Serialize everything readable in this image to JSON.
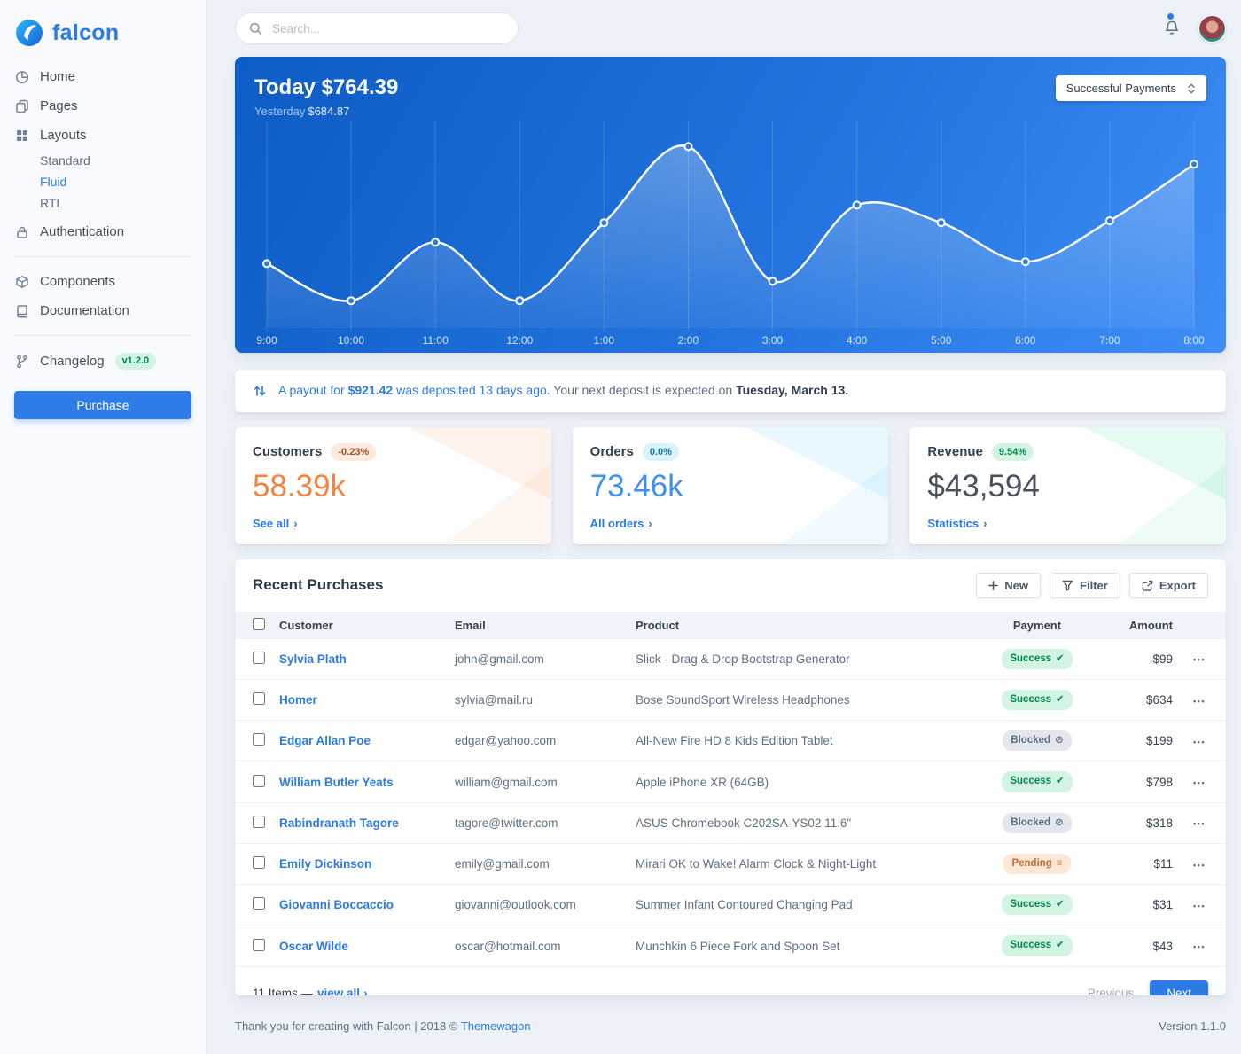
{
  "brand": {
    "name": "falcon"
  },
  "topbar": {
    "search_placeholder": "Search..."
  },
  "sidebar": {
    "home": "Home",
    "pages": "Pages",
    "layouts": "Layouts",
    "layouts_children": {
      "standard": "Standard",
      "fluid": "Fluid",
      "rtl": "RTL"
    },
    "authentication": "Authentication",
    "components": "Components",
    "documentation": "Documentation",
    "changelog": "Changelog",
    "version_badge": "v1.2.0",
    "purchase": "Purchase"
  },
  "payments_card": {
    "title": "Today $764.39",
    "subtitle_label": "Yesterday",
    "subtitle_value": "$684.87",
    "select_value": "Successful Payments"
  },
  "chart_data": {
    "type": "line",
    "title": "Today $764.39",
    "subtitle": "Yesterday $684.87",
    "x": [
      "9:00",
      "10:00",
      "11:00",
      "12:00",
      "1:00",
      "2:00",
      "3:00",
      "4:00",
      "5:00",
      "6:00",
      "7:00",
      "8:00"
    ],
    "series": [
      {
        "name": "Successful Payments",
        "values": [
          33,
          14,
          44,
          14,
          54,
          93,
          24,
          63,
          54,
          34,
          55,
          84
        ]
      }
    ],
    "ylim": [
      0,
      100
    ],
    "grid": "vertical",
    "legend": "none",
    "line_color": "#ffffff",
    "bg_gradient": [
      "#0e5cc6",
      "#3f8ef7"
    ]
  },
  "payout": {
    "link_lead": "A payout for",
    "amount": "$921.42",
    "link_tail": "was deposited 13 days ago.",
    "plain": "Your next deposit is expected on",
    "bold": "Tuesday, March 13."
  },
  "stats": {
    "cards": [
      {
        "id": "customers",
        "title": "Customers",
        "badge": "-0.23%",
        "badge_bg": "#fdeadd",
        "badge_color": "#9d5228",
        "value": "58.39k",
        "value_color": "#f5823f",
        "link": "See all",
        "accent": "#f5803e"
      },
      {
        "id": "orders",
        "title": "Orders",
        "badge": "0.0%",
        "badge_bg": "#d9f2fc",
        "badge_color": "#1978a2",
        "value": "73.46k",
        "value_color": "#3d8ff5",
        "link": "All orders",
        "accent": "#27bcfd"
      },
      {
        "id": "revenue",
        "title": "Revenue",
        "badge": "9.54%",
        "badge_bg": "#d4f4e3",
        "badge_color": "#00864e",
        "value": "$43,594",
        "value_color": "#46535f",
        "link": "Statistics",
        "accent": "#00d27a"
      }
    ]
  },
  "purchases": {
    "title": "Recent Purchases",
    "new_label": "New",
    "filter_label": "Filter",
    "export_label": "Export",
    "columns": {
      "customer": "Customer",
      "email": "Email",
      "product": "Product",
      "payment": "Payment",
      "amount": "Amount"
    },
    "payment_styles": {
      "Success": {
        "bg": "#d4f4e3",
        "color": "#00864e",
        "icon": "✔"
      },
      "Blocked": {
        "bg": "#e3e6ed",
        "color": "#5e6e82",
        "icon": "⊘"
      },
      "Pending": {
        "bg": "#fde8d8",
        "color": "#c46632",
        "icon": "≡"
      }
    },
    "rows": [
      {
        "customer": "Sylvia Plath",
        "email": "john@gmail.com",
        "product": "Slick - Drag & Drop Bootstrap Generator",
        "payment": "Success",
        "amount": "$99"
      },
      {
        "customer": "Homer",
        "email": "sylvia@mail.ru",
        "product": "Bose SoundSport Wireless Headphones",
        "payment": "Success",
        "amount": "$634"
      },
      {
        "customer": "Edgar Allan Poe",
        "email": "edgar@yahoo.com",
        "product": "All-New Fire HD 8 Kids Edition Tablet",
        "payment": "Blocked",
        "amount": "$199"
      },
      {
        "customer": "William Butler Yeats",
        "email": "william@gmail.com",
        "product": "Apple iPhone XR (64GB)",
        "payment": "Success",
        "amount": "$798"
      },
      {
        "customer": "Rabindranath Tagore",
        "email": "tagore@twitter.com",
        "product": "ASUS Chromebook C202SA-YS02 11.6\"",
        "payment": "Blocked",
        "amount": "$318"
      },
      {
        "customer": "Emily Dickinson",
        "email": "emily@gmail.com",
        "product": "Mirari OK to Wake! Alarm Clock & Night-Light",
        "payment": "Pending",
        "amount": "$11"
      },
      {
        "customer": "Giovanni Boccaccio",
        "email": "giovanni@outlook.com",
        "product": "Summer Infant Contoured Changing Pad",
        "payment": "Success",
        "amount": "$31"
      },
      {
        "customer": "Oscar Wilde",
        "email": "oscar@hotmail.com",
        "product": "Munchkin 6 Piece Fork and Spoon Set",
        "payment": "Success",
        "amount": "$43"
      }
    ],
    "footer": {
      "items_text": "11 Items —",
      "view_all": "view all",
      "previous": "Previous",
      "next": "Next"
    }
  },
  "page_footer": {
    "thanks": "Thank you for creating with Falcon | 2018 ©",
    "link": "Themewagon",
    "version": "Version 1.1.0"
  }
}
